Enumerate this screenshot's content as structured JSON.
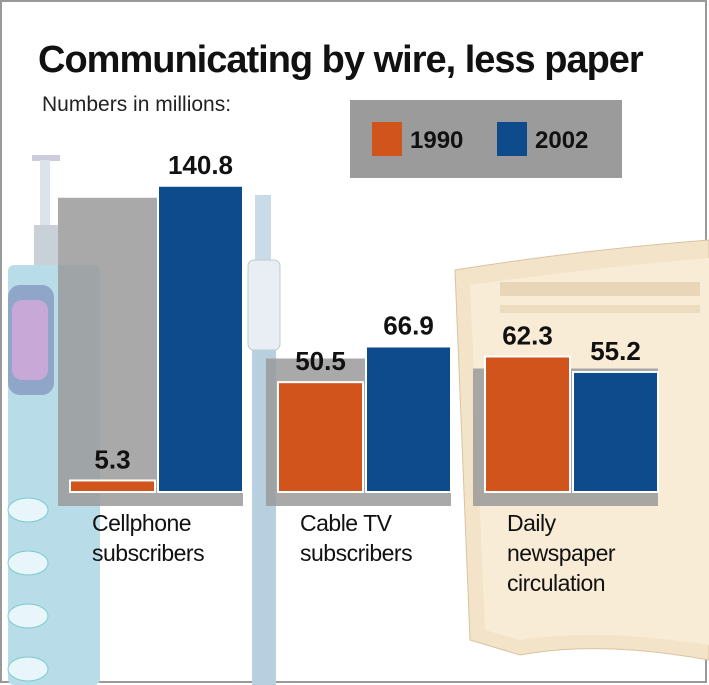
{
  "chart_data": {
    "type": "bar",
    "title": "Communicating by wire, less paper",
    "subtitle": "Numbers in millions:",
    "categories": [
      "Cellphone subscribers",
      "Cable TV subscribers",
      "Daily newspaper circulation"
    ],
    "series": [
      {
        "name": "1990",
        "color": "#d2541d",
        "values": [
          5.3,
          50.5,
          62.3
        ]
      },
      {
        "name": "2002",
        "color": "#0d4b8c",
        "values": [
          140.8,
          66.9,
          55.2
        ]
      }
    ]
  }
}
